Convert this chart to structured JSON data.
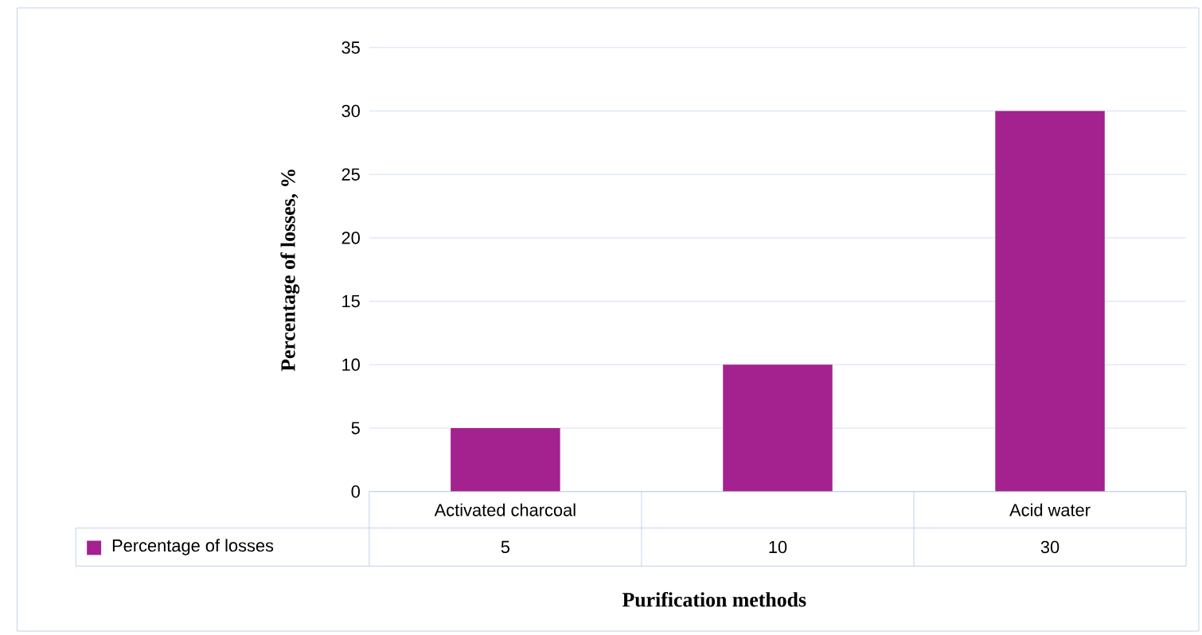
{
  "chart_data": {
    "type": "bar",
    "categories": [
      "Activated charcoal",
      null,
      "Acid water"
    ],
    "series": [
      {
        "name": "Percentage of losses",
        "color": "#a3228f",
        "values": [
          5,
          10,
          30
        ]
      }
    ],
    "xlabel": "Purification methods",
    "ylabel": "Percentage of losses, %",
    "ylim": [
      0,
      35
    ],
    "yticks": [
      0,
      5,
      10,
      15,
      20,
      25,
      30,
      35
    ],
    "grid": "y",
    "legend": "bottom",
    "data_labels": true
  }
}
